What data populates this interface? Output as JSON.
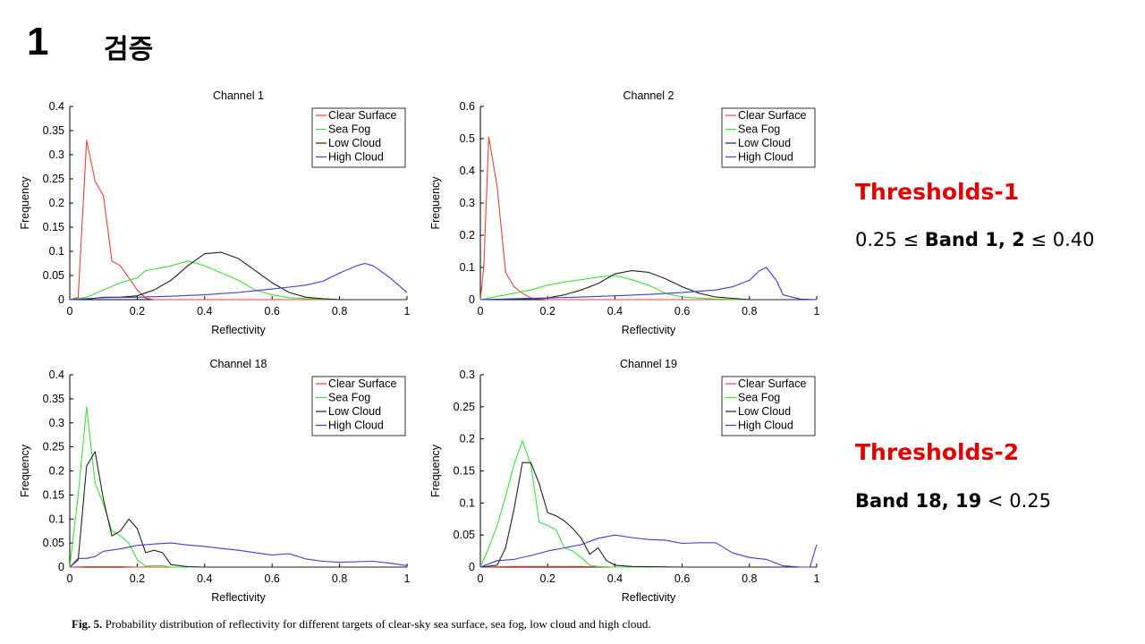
{
  "slide": {
    "number": "1",
    "title": "검증"
  },
  "thresholds": [
    {
      "title": "Thresholds-1",
      "lower_value": "0.25",
      "op1": "≤",
      "bands": "Band 1, 2",
      "op2": "≤",
      "upper_value": "0.40"
    },
    {
      "title": "Thresholds-2",
      "bands": "Band 18, 19",
      "op": "<",
      "value": "0.25"
    }
  ],
  "caption": {
    "label": "Fig. 5.",
    "text": "Probability distribution of reflectivity for different targets of clear-sky sea surface, sea fog, low cloud and high cloud."
  },
  "colors": {
    "clear_surface": "#e8413a",
    "sea_fog": "#3ce03c",
    "low_cloud": "#222222",
    "high_cloud": "#3d3dd6"
  },
  "chart_data": [
    {
      "type": "line",
      "title": "Channel 1",
      "xlabel": "Reflectivity",
      "ylabel": "Frequency",
      "xlim": [
        0,
        1
      ],
      "ylim": [
        0,
        0.4
      ],
      "xticks": [
        0,
        0.2,
        0.4,
        0.6,
        0.8,
        1
      ],
      "yticks": [
        0,
        0.05,
        0.1,
        0.15,
        0.2,
        0.25,
        0.3,
        0.35,
        0.4
      ],
      "legend": "top-right",
      "series": [
        {
          "name": "Clear Surface",
          "color": "#e8413a",
          "x": [
            0,
            0.025,
            0.05,
            0.075,
            0.1,
            0.125,
            0.15,
            0.175,
            0.2,
            0.225,
            0.25,
            0.3,
            0.4,
            0.5,
            0.6,
            0.7,
            0.8,
            0.9,
            1.0
          ],
          "y": [
            0,
            0.005,
            0.33,
            0.245,
            0.215,
            0.08,
            0.07,
            0.045,
            0.02,
            0.003,
            0,
            0,
            0,
            0,
            0,
            0,
            0,
            0,
            0
          ]
        },
        {
          "name": "Sea Fog",
          "color": "#3ce03c",
          "x": [
            0,
            0.05,
            0.1,
            0.15,
            0.2,
            0.225,
            0.25,
            0.3,
            0.35,
            0.4,
            0.45,
            0.5,
            0.55,
            0.6,
            0.65,
            0.7,
            0.8,
            0.9,
            1.0
          ],
          "y": [
            0,
            0.005,
            0.02,
            0.035,
            0.045,
            0.06,
            0.063,
            0.07,
            0.08,
            0.07,
            0.055,
            0.04,
            0.02,
            0.01,
            0.004,
            0.002,
            0,
            0,
            0
          ]
        },
        {
          "name": "Low Cloud",
          "color": "#222222",
          "x": [
            0,
            0.05,
            0.1,
            0.15,
            0.2,
            0.25,
            0.3,
            0.35,
            0.4,
            0.45,
            0.5,
            0.55,
            0.6,
            0.65,
            0.7,
            0.75,
            0.8,
            0.9,
            1.0
          ],
          "y": [
            0,
            0.001,
            0.005,
            0.005,
            0.008,
            0.02,
            0.04,
            0.07,
            0.095,
            0.098,
            0.085,
            0.06,
            0.035,
            0.015,
            0.005,
            0.002,
            0,
            0,
            0
          ]
        },
        {
          "name": "High Cloud",
          "color": "#3d3dd6",
          "x": [
            0,
            0.05,
            0.1,
            0.2,
            0.3,
            0.4,
            0.5,
            0.6,
            0.65,
            0.7,
            0.75,
            0.8,
            0.85,
            0.875,
            0.9,
            0.95,
            1.0
          ],
          "y": [
            0,
            0.002,
            0.004,
            0.005,
            0.007,
            0.01,
            0.015,
            0.022,
            0.026,
            0.03,
            0.038,
            0.055,
            0.07,
            0.075,
            0.07,
            0.045,
            0.015
          ]
        }
      ]
    },
    {
      "type": "line",
      "title": "Channel 2",
      "xlabel": "Reflectivity",
      "ylabel": "Frequency",
      "xlim": [
        0,
        1
      ],
      "ylim": [
        0,
        0.6
      ],
      "xticks": [
        0,
        0.2,
        0.4,
        0.6,
        0.8,
        1
      ],
      "yticks": [
        0,
        0.1,
        0.2,
        0.3,
        0.4,
        0.5,
        0.6
      ],
      "legend": "top-right",
      "series": [
        {
          "name": "Clear Surface",
          "color": "#e8413a",
          "x": [
            0,
            0.01,
            0.025,
            0.05,
            0.075,
            0.1,
            0.125,
            0.15,
            0.2,
            0.3,
            0.4,
            0.5,
            0.6,
            0.7,
            0.8,
            0.9,
            1.0
          ],
          "y": [
            0,
            0.1,
            0.505,
            0.35,
            0.085,
            0.04,
            0.02,
            0.005,
            0,
            0,
            0,
            0,
            0,
            0,
            0,
            0,
            0
          ]
        },
        {
          "name": "Sea Fog",
          "color": "#3ce03c",
          "x": [
            0,
            0.05,
            0.1,
            0.15,
            0.2,
            0.25,
            0.3,
            0.35,
            0.4,
            0.45,
            0.5,
            0.55,
            0.6,
            0.7,
            0.8,
            0.9,
            1.0
          ],
          "y": [
            0,
            0.01,
            0.02,
            0.03,
            0.045,
            0.055,
            0.062,
            0.07,
            0.075,
            0.062,
            0.045,
            0.02,
            0.008,
            0.002,
            0,
            0,
            0
          ]
        },
        {
          "name": "Low Cloud",
          "color": "#222222",
          "x": [
            0,
            0.1,
            0.2,
            0.25,
            0.3,
            0.35,
            0.4,
            0.45,
            0.5,
            0.55,
            0.6,
            0.65,
            0.7,
            0.8,
            0.9,
            1.0
          ],
          "y": [
            0,
            0.002,
            0.005,
            0.015,
            0.03,
            0.05,
            0.08,
            0.09,
            0.085,
            0.065,
            0.04,
            0.02,
            0.008,
            0,
            0,
            0
          ]
        },
        {
          "name": "High Cloud",
          "color": "#3d3dd6",
          "x": [
            0,
            0.1,
            0.2,
            0.3,
            0.4,
            0.5,
            0.6,
            0.7,
            0.75,
            0.8,
            0.83,
            0.85,
            0.88,
            0.9,
            0.95,
            1.0
          ],
          "y": [
            0,
            0.003,
            0.005,
            0.008,
            0.012,
            0.016,
            0.022,
            0.03,
            0.04,
            0.06,
            0.09,
            0.1,
            0.06,
            0.015,
            0.002,
            0
          ]
        }
      ]
    },
    {
      "type": "line",
      "title": "Channel 18",
      "xlabel": "Reflectivity",
      "ylabel": "Frequency",
      "xlim": [
        0,
        1
      ],
      "ylim": [
        0,
        0.4
      ],
      "xticks": [
        0,
        0.2,
        0.4,
        0.6,
        0.8,
        1
      ],
      "yticks": [
        0,
        0.05,
        0.1,
        0.15,
        0.2,
        0.25,
        0.3,
        0.35,
        0.4
      ],
      "legend": "top-right",
      "series": [
        {
          "name": "Clear Surface",
          "color": "#e8413a",
          "x": [
            0,
            0.05,
            0.1,
            0.15,
            0.2,
            0.3,
            0.4,
            0.5,
            0.6,
            0.7,
            0.8,
            0.9,
            1.0
          ],
          "y": [
            0,
            0.001,
            0.001,
            0.001,
            0,
            0,
            0,
            0,
            0,
            0,
            0,
            0,
            0
          ]
        },
        {
          "name": "Sea Fog",
          "color": "#3ce03c",
          "x": [
            0,
            0.025,
            0.05,
            0.075,
            0.1,
            0.125,
            0.15,
            0.175,
            0.2,
            0.225,
            0.25,
            0.275,
            0.3,
            0.4,
            0.6,
            0.8,
            1.0
          ],
          "y": [
            0,
            0.15,
            0.333,
            0.175,
            0.13,
            0.075,
            0.065,
            0.05,
            0.015,
            0.002,
            0.003,
            0.003,
            0,
            0,
            0,
            0,
            0
          ]
        },
        {
          "name": "Low Cloud",
          "color": "#222222",
          "x": [
            0,
            0.025,
            0.05,
            0.075,
            0.1,
            0.125,
            0.15,
            0.175,
            0.2,
            0.225,
            0.25,
            0.275,
            0.3,
            0.35,
            0.4,
            0.6,
            0.8,
            1.0
          ],
          "y": [
            0,
            0.015,
            0.21,
            0.24,
            0.14,
            0.065,
            0.075,
            0.1,
            0.08,
            0.03,
            0.035,
            0.03,
            0.005,
            0.001,
            0,
            0,
            0,
            0
          ]
        },
        {
          "name": "High Cloud",
          "color": "#3d3dd6",
          "x": [
            0,
            0.025,
            0.05,
            0.075,
            0.1,
            0.15,
            0.2,
            0.25,
            0.3,
            0.35,
            0.4,
            0.5,
            0.6,
            0.65,
            0.7,
            0.75,
            0.8,
            0.9,
            0.95,
            1.0
          ],
          "y": [
            0,
            0.018,
            0.018,
            0.022,
            0.033,
            0.038,
            0.045,
            0.048,
            0.05,
            0.046,
            0.043,
            0.035,
            0.025,
            0.028,
            0.017,
            0.012,
            0.01,
            0.012,
            0.008,
            0.003
          ]
        }
      ]
    },
    {
      "type": "line",
      "title": "Channel 19",
      "xlabel": "Reflectivity",
      "ylabel": "Frequency",
      "xlim": [
        0,
        1
      ],
      "ylim": [
        0,
        0.3
      ],
      "xticks": [
        0,
        0.2,
        0.4,
        0.6,
        0.8,
        1
      ],
      "yticks": [
        0,
        0.05,
        0.1,
        0.15,
        0.2,
        0.25,
        0.3
      ],
      "legend": "top-right",
      "series": [
        {
          "name": "Clear Surface",
          "color": "#e8413a",
          "x": [
            0,
            0.1,
            0.2,
            0.3,
            0.4,
            0.5,
            0.6,
            0.7,
            0.8,
            0.9,
            1.0
          ],
          "y": [
            0,
            0.001,
            0.001,
            0.001,
            0,
            0,
            0,
            0,
            0,
            0,
            0
          ]
        },
        {
          "name": "Sea Fog",
          "color": "#3ce03c",
          "x": [
            0,
            0.025,
            0.05,
            0.075,
            0.1,
            0.125,
            0.15,
            0.175,
            0.2,
            0.225,
            0.25,
            0.275,
            0.3,
            0.325,
            0.35,
            0.4,
            0.6,
            0.8,
            1.0
          ],
          "y": [
            0,
            0.03,
            0.065,
            0.11,
            0.16,
            0.197,
            0.16,
            0.07,
            0.065,
            0.058,
            0.03,
            0.025,
            0.015,
            0.003,
            0.001,
            0,
            0,
            0,
            0
          ]
        },
        {
          "name": "Low Cloud",
          "color": "#222222",
          "x": [
            0,
            0.05,
            0.075,
            0.1,
            0.125,
            0.15,
            0.175,
            0.2,
            0.225,
            0.25,
            0.275,
            0.3,
            0.325,
            0.35,
            0.375,
            0.4,
            0.45,
            0.6,
            0.8,
            1.0
          ],
          "y": [
            0,
            0.003,
            0.03,
            0.09,
            0.163,
            0.163,
            0.13,
            0.085,
            0.08,
            0.072,
            0.06,
            0.045,
            0.02,
            0.03,
            0.01,
            0.003,
            0.001,
            0,
            0,
            0
          ]
        },
        {
          "name": "High Cloud",
          "color": "#3d3dd6",
          "x": [
            0,
            0.05,
            0.1,
            0.15,
            0.2,
            0.25,
            0.3,
            0.35,
            0.4,
            0.45,
            0.5,
            0.55,
            0.6,
            0.65,
            0.7,
            0.75,
            0.8,
            0.85,
            0.9,
            0.95,
            0.98,
            1.0
          ],
          "y": [
            0,
            0.01,
            0.012,
            0.018,
            0.025,
            0.03,
            0.035,
            0.045,
            0.05,
            0.046,
            0.043,
            0.042,
            0.037,
            0.038,
            0.038,
            0.022,
            0.015,
            0.012,
            0.002,
            0,
            0,
            0.035
          ]
        }
      ]
    }
  ]
}
